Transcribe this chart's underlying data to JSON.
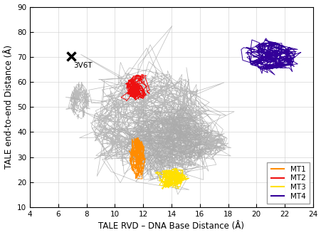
{
  "xlabel": "TALE RVD – DNA Base Distance (Å)",
  "ylabel": "TALE end-to-end Distance (Å)",
  "xlim": [
    4,
    24
  ],
  "ylim": [
    10,
    90
  ],
  "xticks": [
    4,
    6,
    8,
    10,
    12,
    14,
    16,
    18,
    20,
    22,
    24
  ],
  "yticks": [
    10,
    20,
    30,
    40,
    50,
    60,
    70,
    80,
    90
  ],
  "marker_x": 6.9,
  "marker_y": 70.2,
  "marker_label": "3V6T",
  "colors": {
    "MT1": "#FF8C00",
    "MT2": "#EE1111",
    "MT3": "#FFE000",
    "MT4": "#330099",
    "gray": "#AAAAAA"
  },
  "legend_fontsize": 7.5,
  "axis_fontsize": 8.5,
  "tick_fontsize": 7.5
}
